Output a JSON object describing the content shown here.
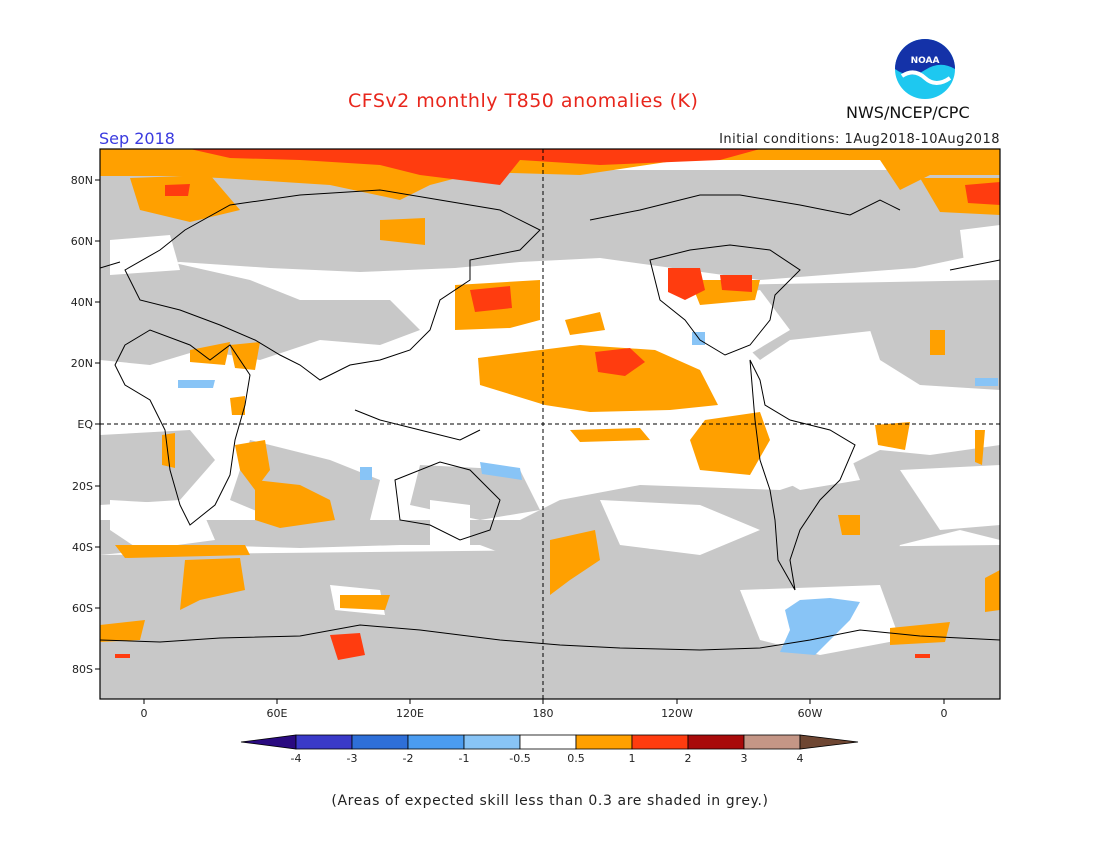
{
  "header": {
    "title": "CFSv2 monthly T850 anomalies (K)",
    "month": "Sep 2018",
    "initial_conditions": "Initial conditions: 1Aug2018-10Aug2018",
    "agency": "NWS/NCEP/CPC",
    "logo_text": "NOAA"
  },
  "map": {
    "lat_labels": [
      "80N",
      "60N",
      "40N",
      "20N",
      "EQ",
      "20S",
      "40S",
      "60S",
      "80S"
    ],
    "lon_labels": [
      "0",
      "60E",
      "120E",
      "180",
      "120W",
      "60W",
      "0"
    ],
    "grey_color": "#c8c8c8"
  },
  "legend": {
    "tick_labels": [
      "-4",
      "-3",
      "-2",
      "-1",
      "-0.5",
      "0.5",
      "1",
      "2",
      "3",
      "4"
    ],
    "colors": [
      "#2a0a80",
      "#3a3ac8",
      "#2e6fd8",
      "#4b9cf0",
      "#88c4f6",
      "#ffffff",
      "#ffa000",
      "#ff3c0f",
      "#a80a0a",
      "#c49686",
      "#6e4632"
    ]
  },
  "footnote": "(Areas of expected skill less than 0.3 are shaded in grey.)"
}
